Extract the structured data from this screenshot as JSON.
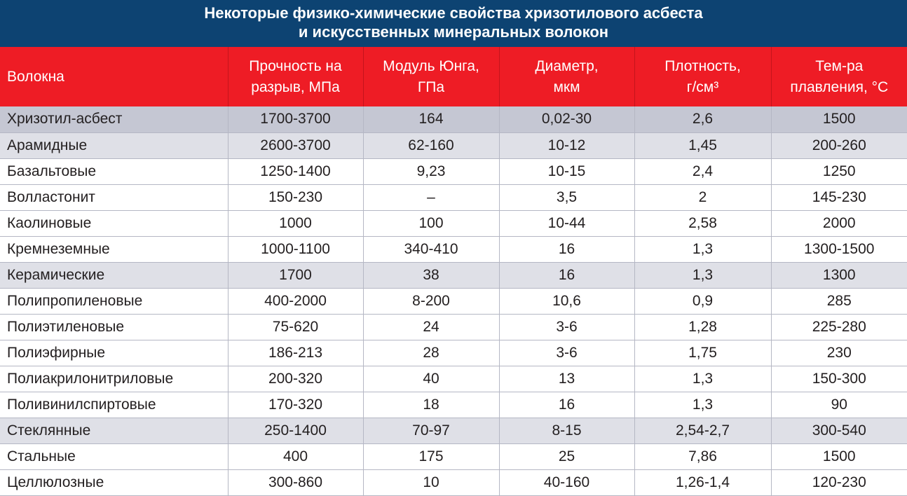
{
  "title": {
    "line1": "Некоторые физико-химические свойства хризотилового асбеста",
    "line2": "и искусственных минеральных волокон"
  },
  "headers": [
    {
      "l1": "Волокна",
      "l2": ""
    },
    {
      "l1": "Прочность на",
      "l2": "разрыв, МПа"
    },
    {
      "l1": "Модуль Юнга,",
      "l2": "ГПа"
    },
    {
      "l1": "Диаметр,",
      "l2": "мкм"
    },
    {
      "l1": "Плотность,",
      "l2": "г/см³"
    },
    {
      "l1": "Тем-ра",
      "l2": "плавления, °С"
    }
  ],
  "rows": [
    {
      "shade": "dark",
      "cells": [
        "Хризотил-асбест",
        "1700-3700",
        "164",
        "0,02-30",
        "2,6",
        "1500"
      ]
    },
    {
      "shade": "light",
      "cells": [
        "Арамидные",
        "2600-3700",
        "62-160",
        "10-12",
        "1,45",
        "200-260"
      ]
    },
    {
      "shade": "none",
      "cells": [
        "Базальтовые",
        "1250-1400",
        "9,23",
        "10-15",
        "2,4",
        "1250"
      ]
    },
    {
      "shade": "none",
      "cells": [
        "Волластонит",
        "150-230",
        "–",
        "3,5",
        "2",
        "145-230"
      ]
    },
    {
      "shade": "none",
      "cells": [
        "Каолиновые",
        "1000",
        "100",
        "10-44",
        "2,58",
        "2000"
      ]
    },
    {
      "shade": "none",
      "cells": [
        "Кремнеземные",
        "1000-1100",
        "340-410",
        "16",
        "1,3",
        "1300-1500"
      ]
    },
    {
      "shade": "light",
      "cells": [
        "Керамические",
        "1700",
        "38",
        "16",
        "1,3",
        "1300"
      ]
    },
    {
      "shade": "none",
      "cells": [
        "Полипропиленовые",
        "400-2000",
        "8-200",
        "10,6",
        "0,9",
        "285"
      ]
    },
    {
      "shade": "none",
      "cells": [
        "Полиэтиленовые",
        "75-620",
        "24",
        "3-6",
        "1,28",
        "225-280"
      ]
    },
    {
      "shade": "none",
      "cells": [
        "Полиэфирные",
        "186-213",
        "28",
        "3-6",
        "1,75",
        "230"
      ]
    },
    {
      "shade": "none",
      "cells": [
        "Полиакрилонитриловые",
        "200-320",
        "40",
        "13",
        "1,3",
        "150-300"
      ]
    },
    {
      "shade": "none",
      "cells": [
        "Поливинилспиртовые",
        "170-320",
        "18",
        "16",
        "1,3",
        "90"
      ]
    },
    {
      "shade": "light",
      "cells": [
        "Стеклянные",
        "250-1400",
        "70-97",
        "8-15",
        "2,54-2,7",
        "300-540"
      ]
    },
    {
      "shade": "none",
      "cells": [
        "Стальные",
        "400",
        "175",
        "25",
        "7,86",
        "1500"
      ]
    },
    {
      "shade": "none",
      "cells": [
        "Целлюлозные",
        "300-860",
        "10",
        "40-160",
        "1,26-1,4",
        "120-230"
      ]
    }
  ]
}
